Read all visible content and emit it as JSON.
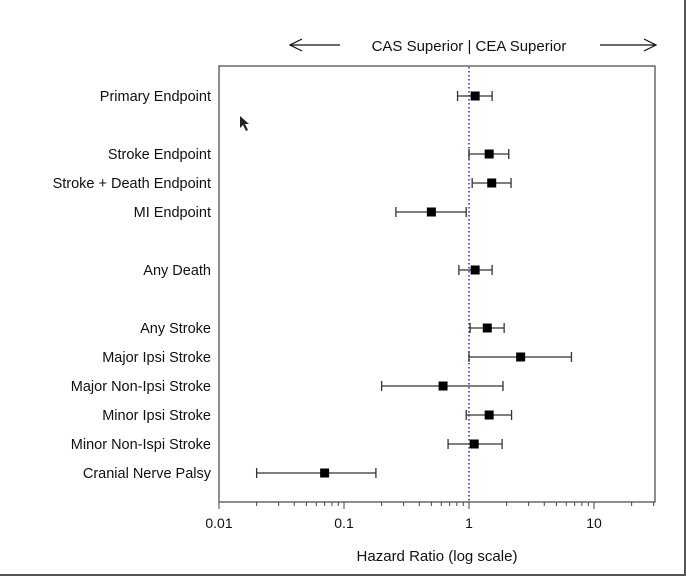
{
  "chart_data": {
    "type": "forest",
    "header": "CAS Superior | CEA Superior",
    "xlabel": "Hazard Ratio (log scale)",
    "xscale": "log",
    "xlim": [
      0.01,
      30
    ],
    "xticks": [
      0.01,
      0.1,
      1,
      10
    ],
    "xtick_labels": [
      "0.01",
      "0.1",
      "1",
      "10"
    ],
    "reference_line": 1,
    "reference_color": "#3a3aa8",
    "marker_color": "#000000",
    "grid": false,
    "rows": [
      {
        "label": "Primary Endpoint",
        "slot": 0,
        "est": 1.12,
        "low": 0.81,
        "high": 1.53
      },
      {
        "label": "Stroke Endpoint",
        "slot": 2,
        "est": 1.45,
        "low": 1.0,
        "high": 2.08
      },
      {
        "label": "Stroke + Death Endpoint",
        "slot": 3,
        "est": 1.52,
        "low": 1.06,
        "high": 2.17
      },
      {
        "label": "MI Endpoint",
        "slot": 4,
        "est": 0.5,
        "low": 0.26,
        "high": 0.95
      },
      {
        "label": "Any Death",
        "slot": 6,
        "est": 1.12,
        "low": 0.83,
        "high": 1.53
      },
      {
        "label": "Any Stroke",
        "slot": 8,
        "est": 1.4,
        "low": 1.02,
        "high": 1.91
      },
      {
        "label": "Major Ipsi Stroke",
        "slot": 9,
        "est": 2.59,
        "low": 1.0,
        "high": 6.6
      },
      {
        "label": "Major Non-Ipsi Stroke",
        "slot": 10,
        "est": 0.62,
        "low": 0.2,
        "high": 1.87
      },
      {
        "label": "Minor Ipsi Stroke",
        "slot": 11,
        "est": 1.45,
        "low": 0.95,
        "high": 2.19
      },
      {
        "label": "Minor Non-Ispi Stroke",
        "slot": 12,
        "est": 1.1,
        "low": 0.68,
        "high": 1.84
      },
      {
        "label": "Cranial Nerve Palsy",
        "slot": 13,
        "est": 0.07,
        "low": 0.02,
        "high": 0.18
      }
    ]
  }
}
